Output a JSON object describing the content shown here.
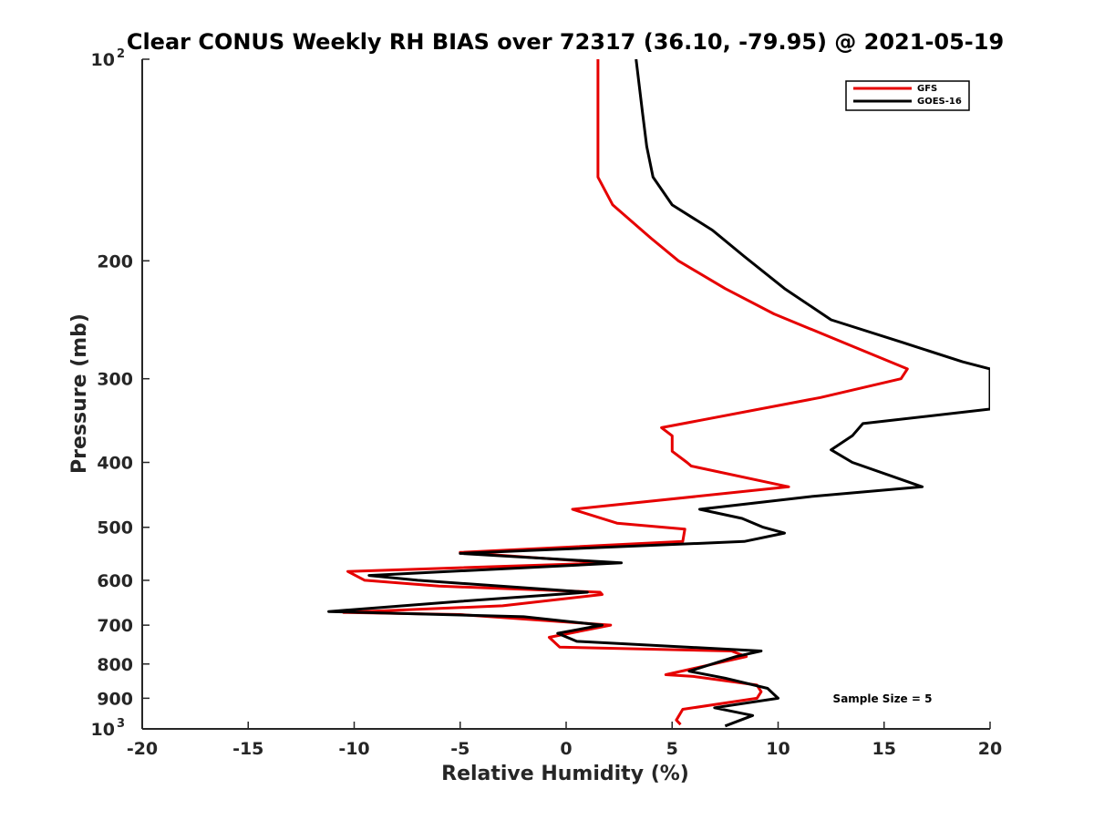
{
  "chart_data": {
    "type": "line",
    "title": "Clear CONUS Weekly RH BIAS over 72317 (36.10, -79.95) @ 2021-05-19",
    "xlabel": "Relative Humidity (%)",
    "ylabel": "Pressure (mb)",
    "xlim": [
      -20,
      20
    ],
    "ylim": [
      1000,
      100
    ],
    "y_scale": "log",
    "y_reversed": true,
    "grid": false,
    "legend_position": "top-right",
    "x_ticks": [
      -20,
      -15,
      -10,
      -5,
      0,
      5,
      10,
      15,
      20
    ],
    "x_tick_labels": [
      "-20",
      "-15",
      "-10",
      "-5",
      "0",
      "5",
      "10",
      "15",
      "20"
    ],
    "y_ticks": [
      {
        "value": 100,
        "base": "10",
        "exp": "2",
        "label": ""
      },
      {
        "value": 200,
        "base": "",
        "exp": "",
        "label": "200"
      },
      {
        "value": 300,
        "base": "",
        "exp": "",
        "label": "300"
      },
      {
        "value": 400,
        "base": "",
        "exp": "",
        "label": "400"
      },
      {
        "value": 500,
        "base": "",
        "exp": "",
        "label": "500"
      },
      {
        "value": 600,
        "base": "",
        "exp": "",
        "label": "600"
      },
      {
        "value": 700,
        "base": "",
        "exp": "",
        "label": "700"
      },
      {
        "value": 800,
        "base": "",
        "exp": "",
        "label": "800"
      },
      {
        "value": 900,
        "base": "",
        "exp": "",
        "label": "900"
      },
      {
        "value": 1000,
        "base": "10",
        "exp": "3",
        "label": ""
      }
    ],
    "series": [
      {
        "name": "GFS",
        "color": "#e60000",
        "points": [
          {
            "x": 1.5,
            "y": 100
          },
          {
            "x": 1.5,
            "y": 150
          },
          {
            "x": 2.2,
            "y": 165
          },
          {
            "x": 4.0,
            "y": 185
          },
          {
            "x": 5.3,
            "y": 200
          },
          {
            "x": 7.5,
            "y": 220
          },
          {
            "x": 9.8,
            "y": 240
          },
          {
            "x": 16.1,
            "y": 290
          },
          {
            "x": 15.8,
            "y": 300
          },
          {
            "x": 12.0,
            "y": 320
          },
          {
            "x": 4.5,
            "y": 355
          },
          {
            "x": 5.0,
            "y": 365
          },
          {
            "x": 5.0,
            "y": 385
          },
          {
            "x": 5.7,
            "y": 400
          },
          {
            "x": 5.9,
            "y": 405
          },
          {
            "x": 10.5,
            "y": 435
          },
          {
            "x": 0.3,
            "y": 470
          },
          {
            "x": 2.4,
            "y": 493
          },
          {
            "x": 5.6,
            "y": 503
          },
          {
            "x": 5.5,
            "y": 525
          },
          {
            "x": -5.0,
            "y": 545
          },
          {
            "x": 2.0,
            "y": 565
          },
          {
            "x": -10.3,
            "y": 582
          },
          {
            "x": -9.5,
            "y": 600
          },
          {
            "x": -6.0,
            "y": 612
          },
          {
            "x": 1.6,
            "y": 625
          },
          {
            "x": 1.7,
            "y": 630
          },
          {
            "x": -3.0,
            "y": 655
          },
          {
            "x": -10.5,
            "y": 670
          },
          {
            "x": -5.0,
            "y": 675
          },
          {
            "x": 2.1,
            "y": 700
          },
          {
            "x": -0.8,
            "y": 730
          },
          {
            "x": -0.3,
            "y": 755
          },
          {
            "x": 7.8,
            "y": 765
          },
          {
            "x": 8.5,
            "y": 780
          },
          {
            "x": 4.7,
            "y": 830
          },
          {
            "x": 6.0,
            "y": 835
          },
          {
            "x": 9.0,
            "y": 860
          },
          {
            "x": 9.2,
            "y": 880
          },
          {
            "x": 9.0,
            "y": 900
          },
          {
            "x": 5.5,
            "y": 935
          },
          {
            "x": 5.2,
            "y": 970
          },
          {
            "x": 5.4,
            "y": 985
          }
        ]
      },
      {
        "name": "GOES-16",
        "color": "#000000",
        "points": [
          {
            "x": 3.3,
            "y": 100
          },
          {
            "x": 3.6,
            "y": 120
          },
          {
            "x": 3.8,
            "y": 135
          },
          {
            "x": 4.1,
            "y": 150
          },
          {
            "x": 5.0,
            "y": 165
          },
          {
            "x": 6.9,
            "y": 180
          },
          {
            "x": 8.4,
            "y": 197
          },
          {
            "x": 10.3,
            "y": 220
          },
          {
            "x": 12.5,
            "y": 245
          },
          {
            "x": 15.9,
            "y": 265
          },
          {
            "x": 18.7,
            "y": 283
          },
          {
            "x": 20.0,
            "y": 290
          },
          {
            "x": 20.0,
            "y": 333
          },
          {
            "x": 14.0,
            "y": 350
          },
          {
            "x": 13.5,
            "y": 365
          },
          {
            "x": 12.5,
            "y": 383
          },
          {
            "x": 13.5,
            "y": 400
          },
          {
            "x": 16.8,
            "y": 435
          },
          {
            "x": 11.5,
            "y": 450
          },
          {
            "x": 6.3,
            "y": 470
          },
          {
            "x": 8.3,
            "y": 485
          },
          {
            "x": 9.3,
            "y": 500
          },
          {
            "x": 10.3,
            "y": 510
          },
          {
            "x": 8.4,
            "y": 525
          },
          {
            "x": -5.0,
            "y": 547
          },
          {
            "x": 2.6,
            "y": 565
          },
          {
            "x": -9.3,
            "y": 590
          },
          {
            "x": -7.0,
            "y": 600
          },
          {
            "x": 1.0,
            "y": 625
          },
          {
            "x": -5.0,
            "y": 645
          },
          {
            "x": -11.2,
            "y": 668
          },
          {
            "x": -2.0,
            "y": 680
          },
          {
            "x": 1.7,
            "y": 700
          },
          {
            "x": -0.4,
            "y": 720
          },
          {
            "x": 0.5,
            "y": 740
          },
          {
            "x": 9.2,
            "y": 765
          },
          {
            "x": 8.0,
            "y": 780
          },
          {
            "x": 5.8,
            "y": 820
          },
          {
            "x": 7.5,
            "y": 840
          },
          {
            "x": 9.5,
            "y": 870
          },
          {
            "x": 10.0,
            "y": 900
          },
          {
            "x": 7.0,
            "y": 930
          },
          {
            "x": 8.8,
            "y": 955
          },
          {
            "x": 7.5,
            "y": 990
          }
        ]
      }
    ],
    "annotations": [
      {
        "text": "Sample Size = 5",
        "x": 12.5,
        "y": 900
      }
    ]
  }
}
